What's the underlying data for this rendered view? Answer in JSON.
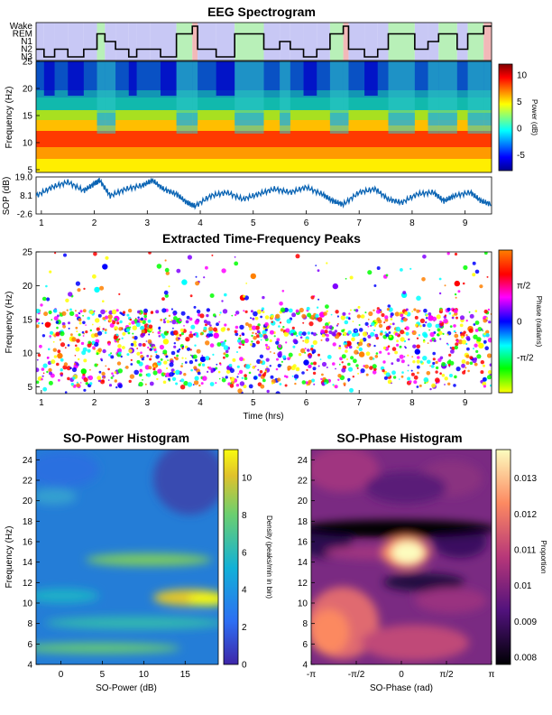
{
  "chart_data": [
    {
      "id": "spectrogram",
      "type": "heatmap",
      "title": "EEG Spectrogram",
      "ylabel": "Frequency (Hz)",
      "x_range_hrs": [
        0.9,
        9.5
      ],
      "y_ticks": [
        5,
        10,
        15,
        20,
        25
      ],
      "ylim": [
        4.5,
        25
      ],
      "colorbar": {
        "label": "Power (dB)",
        "ticks": [
          -5,
          0,
          5,
          10
        ],
        "range": [
          -8,
          12
        ],
        "colormap": "jet"
      },
      "hypnogram": {
        "stages": [
          "Wake",
          "REM",
          "N1",
          "N2",
          "N3"
        ],
        "stage_colors": {
          "Wake": "#f2b8b8",
          "REM": "#b8f0b8",
          "NREM": "#c8c8f5"
        },
        "segments": [
          [
            0.9,
            1.05,
            "N2"
          ],
          [
            1.05,
            1.25,
            "N3"
          ],
          [
            1.25,
            1.5,
            "N2"
          ],
          [
            1.5,
            1.8,
            "N3"
          ],
          [
            1.8,
            2.05,
            "N2"
          ],
          [
            2.05,
            2.2,
            "REM"
          ],
          [
            2.2,
            2.4,
            "N1"
          ],
          [
            2.4,
            2.65,
            "N2"
          ],
          [
            2.65,
            2.8,
            "N3"
          ],
          [
            2.8,
            3.05,
            "N2"
          ],
          [
            3.05,
            3.25,
            "N2"
          ],
          [
            3.25,
            3.55,
            "N3"
          ],
          [
            3.55,
            3.85,
            "REM"
          ],
          [
            3.85,
            3.95,
            "Wake"
          ],
          [
            3.95,
            4.3,
            "N2"
          ],
          [
            4.3,
            4.65,
            "N3"
          ],
          [
            4.65,
            5.2,
            "REM"
          ],
          [
            5.2,
            5.5,
            "N2"
          ],
          [
            5.5,
            5.7,
            "N1"
          ],
          [
            5.7,
            5.95,
            "N2"
          ],
          [
            5.95,
            6.2,
            "N3"
          ],
          [
            6.2,
            6.45,
            "N2"
          ],
          [
            6.45,
            6.7,
            "REM"
          ],
          [
            6.7,
            6.8,
            "Wake"
          ],
          [
            6.8,
            7.1,
            "N2"
          ],
          [
            7.1,
            7.35,
            "N3"
          ],
          [
            7.35,
            7.55,
            "N2"
          ],
          [
            7.55,
            8.05,
            "REM"
          ],
          [
            8.05,
            8.3,
            "N2"
          ],
          [
            8.3,
            8.5,
            "N1"
          ],
          [
            8.5,
            8.85,
            "REM"
          ],
          [
            8.85,
            9.05,
            "N2"
          ],
          [
            9.05,
            9.35,
            "REM"
          ],
          [
            9.35,
            9.5,
            "Wake"
          ]
        ]
      }
    },
    {
      "id": "sop",
      "type": "line",
      "ylabel": "SOP (dB)",
      "y_ticks": [
        19.0,
        8.1,
        -2.6
      ],
      "ylim": [
        -2.6,
        19.0
      ],
      "x_ticks": [
        1,
        2,
        3,
        4,
        5,
        6,
        7,
        8,
        9
      ],
      "x": [
        0.9,
        1.2,
        1.5,
        1.8,
        2.0,
        2.1,
        2.3,
        2.6,
        2.9,
        3.1,
        3.3,
        3.55,
        3.75,
        3.9,
        4.2,
        4.5,
        4.8,
        5.1,
        5.4,
        5.7,
        6.0,
        6.3,
        6.5,
        6.7,
        7.0,
        7.3,
        7.55,
        7.8,
        8.1,
        8.4,
        8.6,
        8.8,
        9.1,
        9.3,
        9.5
      ],
      "values": [
        8,
        13,
        16,
        11,
        15,
        17,
        8,
        12,
        14,
        17,
        12,
        9,
        4,
        2,
        8,
        10,
        6,
        9,
        12,
        10,
        13,
        9,
        5,
        3,
        10,
        12,
        6,
        4,
        9,
        10,
        5,
        8,
        10,
        5,
        3
      ]
    },
    {
      "id": "peaks",
      "type": "scatter",
      "title": "Extracted Time-Frequency Peaks",
      "xlabel": "Time (hrs)",
      "ylabel": "Frequency (Hz)",
      "x_ticks": [
        1,
        2,
        3,
        4,
        5,
        6,
        7,
        8,
        9
      ],
      "y_ticks": [
        5,
        10,
        15,
        20,
        25
      ],
      "xlim": [
        0.9,
        9.5
      ],
      "ylim": [
        4,
        25
      ],
      "colorbar": {
        "label": "Phase (radians)",
        "tick_labels": [
          "-π/2",
          "0",
          "π/2"
        ],
        "colormap": "hsv"
      },
      "points": [
        [
          1.12,
          14.2
        ],
        [
          1.35,
          9.6
        ],
        [
          1.58,
          12.1
        ],
        [
          1.8,
          7.3
        ],
        [
          2.05,
          19.4
        ],
        [
          2.2,
          22.8
        ],
        [
          2.42,
          15.1
        ],
        [
          2.7,
          10.4
        ],
        [
          2.95,
          13.3
        ],
        [
          3.15,
          8.2
        ],
        [
          3.35,
          11.7
        ],
        [
          3.6,
          14.8
        ],
        [
          3.7,
          20.5
        ],
        [
          4.05,
          9.1
        ],
        [
          4.3,
          12.6
        ],
        [
          4.55,
          7.8
        ],
        [
          4.8,
          18.2
        ],
        [
          5.0,
          21.4
        ],
        [
          5.25,
          14.0
        ],
        [
          5.5,
          10.9
        ],
        [
          5.75,
          13.1
        ],
        [
          6.0,
          8.6
        ],
        [
          6.3,
          15.7
        ],
        [
          6.55,
          19.9
        ],
        [
          6.8,
          11.4
        ],
        [
          7.05,
          9.8
        ],
        [
          7.3,
          14.5
        ],
        [
          7.6,
          12.3
        ],
        [
          7.85,
          18.6
        ],
        [
          8.1,
          10.2
        ],
        [
          8.35,
          15.2
        ],
        [
          8.6,
          8.1
        ],
        [
          8.85,
          20.3
        ],
        [
          9.1,
          13.6
        ],
        [
          9.3,
          11.1
        ]
      ]
    },
    {
      "id": "so_power_hist",
      "type": "heatmap",
      "title": "SO-Power Histogram",
      "xlabel": "SO-Power (dB)",
      "ylabel": "Frequency (Hz)",
      "x_ticks": [
        0,
        5,
        10,
        15
      ],
      "y_ticks": [
        4,
        6,
        8,
        10,
        12,
        14,
        16,
        18,
        20,
        22,
        24
      ],
      "xlim": [
        -3,
        19
      ],
      "ylim": [
        4,
        25
      ],
      "colorbar": {
        "label": "Density (peaks/min in bin)",
        "ticks": [
          0,
          2,
          4,
          6,
          8,
          10
        ],
        "range": [
          0,
          11.5
        ],
        "colormap": "parula"
      }
    },
    {
      "id": "so_phase_hist",
      "type": "heatmap",
      "title": "SO-Phase Histogram",
      "xlabel": "SO-Phase (rad)",
      "ylabel": "",
      "x_tick_labels": [
        "-π",
        "-π/2",
        "0",
        "π/2",
        "π"
      ],
      "y_ticks": [
        4,
        6,
        8,
        10,
        12,
        14,
        16,
        18,
        20,
        22,
        24
      ],
      "ylim": [
        4,
        25
      ],
      "colorbar": {
        "label": "Proportion",
        "ticks": [
          0.008,
          0.009,
          0.01,
          0.011,
          0.012,
          0.013
        ],
        "range": [
          0.0078,
          0.0138
        ],
        "colormap": "magma"
      }
    }
  ]
}
